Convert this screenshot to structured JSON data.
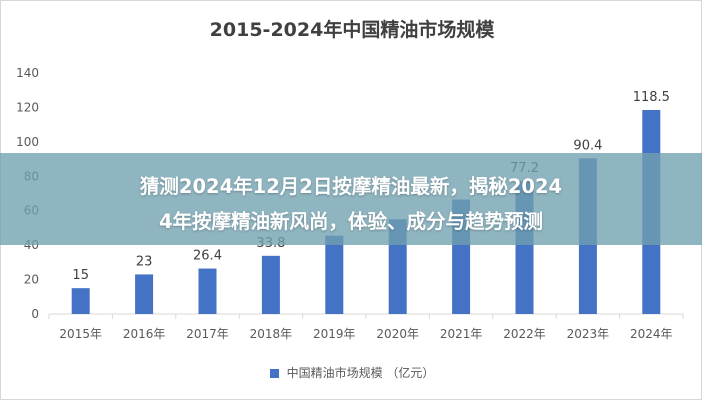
{
  "chart_data": {
    "type": "bar",
    "title": "2015-2024年中国精油市场规模",
    "categories": [
      "2015年",
      "2016年",
      "2017年",
      "2018年",
      "2019年",
      "2020年",
      "2021年",
      "2022年",
      "2023年",
      "2024年"
    ],
    "series": [
      {
        "name": "中国精油市场规模 （亿元）",
        "values": [
          15,
          23,
          26.4,
          33.8,
          45.5,
          55,
          66.5,
          77.2,
          90.4,
          118.5
        ],
        "color": "#4472c4"
      }
    ],
    "data_labels": [
      "15",
      "23",
      "26.4",
      "33.8",
      "",
      "",
      "",
      "77.2",
      "90.4",
      "118.5"
    ],
    "y_ticks": [
      "0",
      "20",
      "40",
      "60",
      "80",
      "100",
      "120",
      "140"
    ],
    "ylim": [
      0,
      140
    ],
    "grid": false,
    "legend_position": "bottom"
  },
  "overlay": {
    "line1": "猜测2024年12月2日按摩精油最新，揭秘2024",
    "line2": "4年按摩精油新风尚，体验、成分与趋势预测"
  }
}
